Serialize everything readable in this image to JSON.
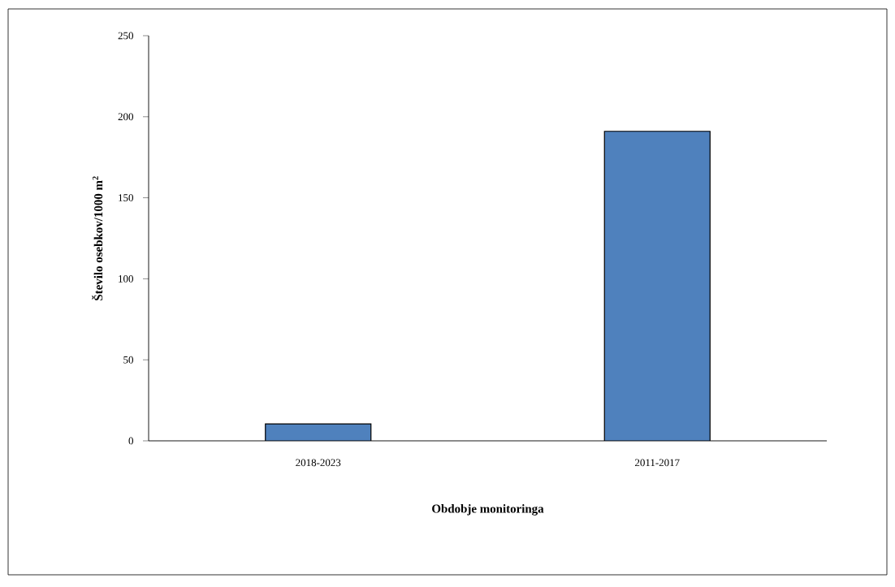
{
  "chart_data": {
    "type": "bar",
    "xlabel": "Obdobje monitoringa",
    "ylabel": "Število osebkov/1000 m$^{2}$",
    "categories": [
      "2018-2023",
      "2011-2017"
    ],
    "values": [
      10.5,
      191
    ],
    "color": "#4f81bd",
    "ylim": [
      0,
      250
    ],
    "yticks": [
      0,
      50,
      100,
      150,
      200,
      250
    ]
  }
}
